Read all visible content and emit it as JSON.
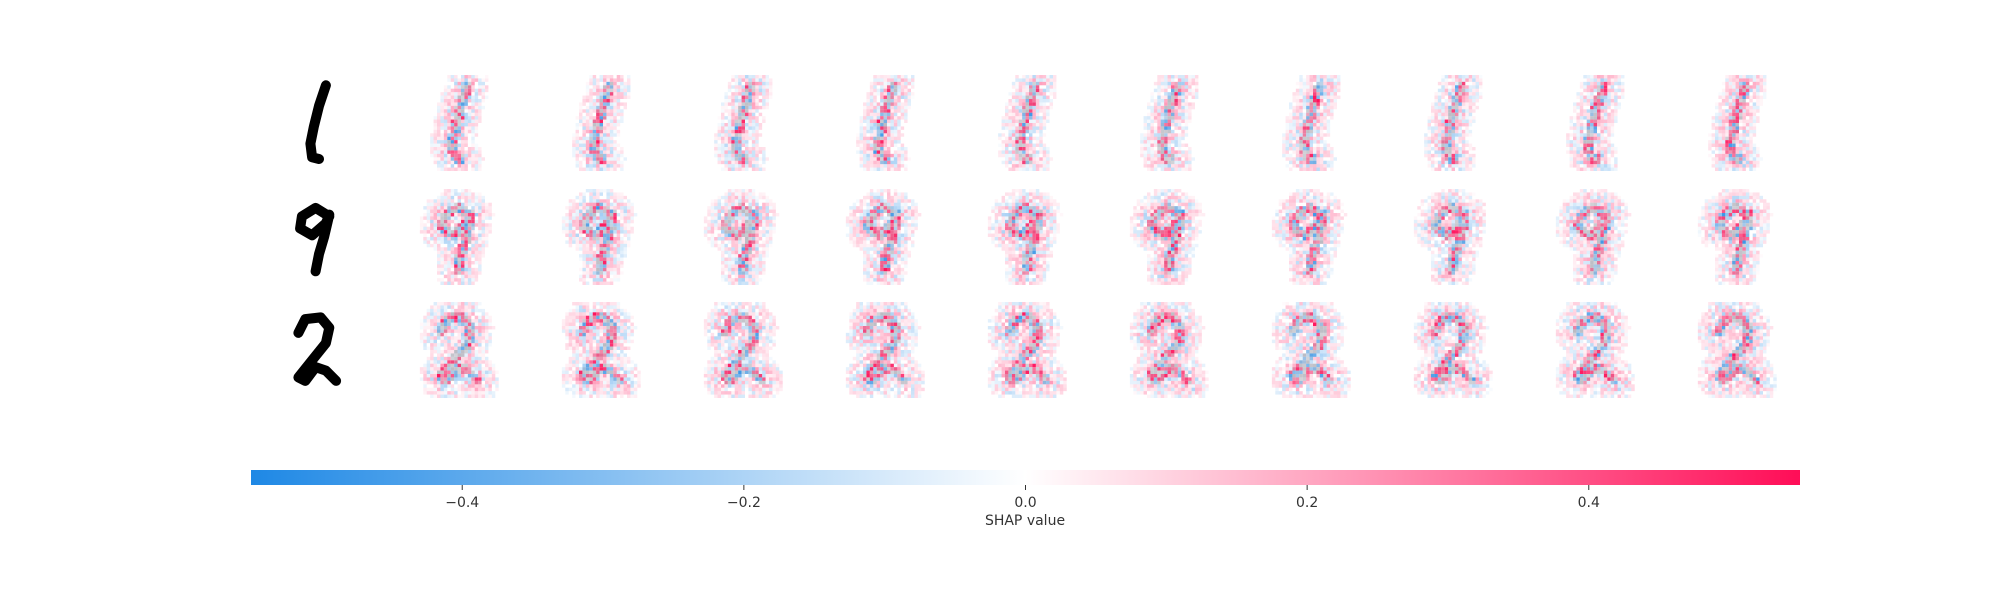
{
  "chart_data": {
    "type": "heatmap",
    "rows": [
      {
        "digit": "1",
        "label": "1"
      },
      {
        "digit": "9",
        "label": "9"
      },
      {
        "digit": "2",
        "label": "2"
      }
    ],
    "explanation_columns": 10,
    "colorbar": {
      "label": "SHAP value",
      "range": [
        -0.55,
        0.55
      ],
      "ticks": [
        {
          "value": -0.4,
          "label": "−0.4"
        },
        {
          "value": -0.2,
          "label": "−0.2"
        },
        {
          "value": 0.0,
          "label": "0.0"
        },
        {
          "value": 0.2,
          "label": "0.2"
        },
        {
          "value": 0.4,
          "label": "0.4"
        }
      ],
      "negative_color": "#1e88e5",
      "neutral_color": "#ffffff",
      "positive_color": "#ff0d57"
    },
    "digit_color": "#000000"
  }
}
